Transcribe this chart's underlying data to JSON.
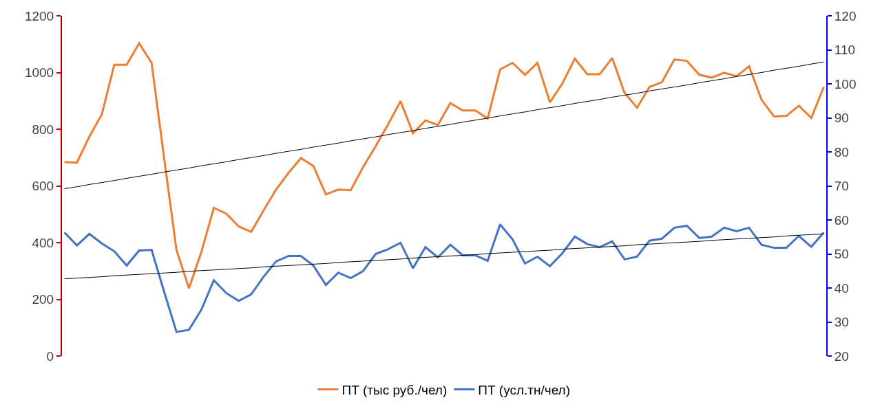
{
  "chart_data": {
    "type": "line",
    "categories": [
      null,
      null,
      null,
      null,
      null,
      null,
      null,
      null,
      null,
      null,
      null,
      null,
      null,
      null,
      null,
      null,
      null,
      null,
      null,
      null,
      null,
      null,
      null,
      null,
      null,
      null,
      null,
      null,
      null,
      null,
      null,
      null,
      null,
      null,
      null,
      null,
      null,
      null,
      null,
      null,
      null,
      null,
      null,
      null,
      null,
      null,
      null,
      null,
      null,
      null,
      null,
      null,
      null,
      null,
      null,
      null,
      null,
      null,
      null,
      null,
      null,
      null
    ],
    "series": [
      {
        "name": "ПТ (тыс руб./чел)",
        "color": "#ed7d31",
        "values": [
          684,
          682,
          774,
          852,
          1027,
          1027,
          1103,
          1034,
          700,
          374,
          239,
          367,
          523,
          502,
          457,
          438,
          514,
          587,
          646,
          698,
          670,
          570,
          587,
          585,
          667,
          740,
          817,
          899,
          786,
          831,
          815,
          892,
          866,
          866,
          838,
          1011,
          1034,
          992,
          1034,
          895,
          961,
          1049,
          994,
          994,
          1051,
          928,
          876,
          949,
          966,
          1046,
          1041,
          992,
          982,
          999,
          987,
          1022,
          904,
          845,
          847,
          883,
          840,
          949
        ]
      },
      {
        "name": "ПТ (усл.тн/чел)",
        "color": "#4472c4",
        "axis": "y2",
        "values": [
          56.3,
          52.5,
          55.9,
          53.1,
          50.8,
          46.6,
          51.0,
          51.2,
          39.0,
          27.1,
          27.7,
          33.6,
          42.3,
          38.5,
          36.2,
          38.1,
          43.3,
          47.8,
          49.4,
          49.4,
          46.6,
          40.9,
          44.5,
          42.9,
          45.0,
          50.0,
          51.4,
          53.3,
          45.8,
          52.0,
          49.0,
          52.7,
          49.6,
          49.6,
          48.0,
          58.7,
          54.3,
          47.2,
          49.2,
          46.4,
          50.2,
          55.1,
          52.9,
          52.0,
          53.7,
          48.4,
          49.2,
          53.9,
          54.5,
          57.7,
          58.3,
          54.7,
          55.1,
          57.7,
          56.7,
          57.7,
          52.7,
          51.8,
          51.8,
          55.3,
          52.1,
          56.3
        ]
      },
      {
        "color": "#000000",
        "values": [
          590,
          597,
          605,
          612,
          619,
          627,
          634,
          641,
          649,
          656,
          663,
          671,
          678,
          685,
          693,
          700,
          707,
          715,
          722,
          729,
          737,
          744,
          751,
          759,
          766,
          773,
          781,
          788,
          795,
          803,
          810,
          817,
          825,
          832,
          839,
          847,
          854,
          861,
          869,
          876,
          883,
          891,
          898,
          905,
          913,
          920,
          927,
          935,
          942,
          949,
          956,
          964,
          971,
          978,
          986,
          993,
          1000,
          1008,
          1015,
          1022,
          1030,
          1037
        ]
      },
      {
        "color": "#000000",
        "axis": "y2",
        "values": [
          42.7,
          42.9,
          43.1,
          43.3,
          43.6,
          43.8,
          44.0,
          44.2,
          44.4,
          44.6,
          44.9,
          45.1,
          45.3,
          45.5,
          45.7,
          45.9,
          46.2,
          46.4,
          46.6,
          46.8,
          47.0,
          47.2,
          47.5,
          47.7,
          47.9,
          48.1,
          48.3,
          48.5,
          48.8,
          49.0,
          49.2,
          49.4,
          49.6,
          49.8,
          50.1,
          50.3,
          50.5,
          50.7,
          50.9,
          51.1,
          51.4,
          51.6,
          51.8,
          52.0,
          52.2,
          52.4,
          52.7,
          52.9,
          53.1,
          53.3,
          53.5,
          53.7,
          54.0,
          54.2,
          54.4,
          54.6,
          54.8,
          55.0,
          55.3,
          55.5,
          55.7,
          55.9
        ]
      }
    ],
    "ylim": [
      0,
      1200
    ],
    "yticks": [
      0,
      200,
      400,
      600,
      800,
      1000,
      1200
    ],
    "y2lim": [
      20,
      120
    ],
    "y2ticks": [
      20,
      30,
      40,
      50,
      60,
      70,
      80,
      90,
      100,
      110,
      120
    ],
    "tick_labels": "y",
    "legend": "bottom",
    "marker": "none",
    "line_style": "solid"
  }
}
